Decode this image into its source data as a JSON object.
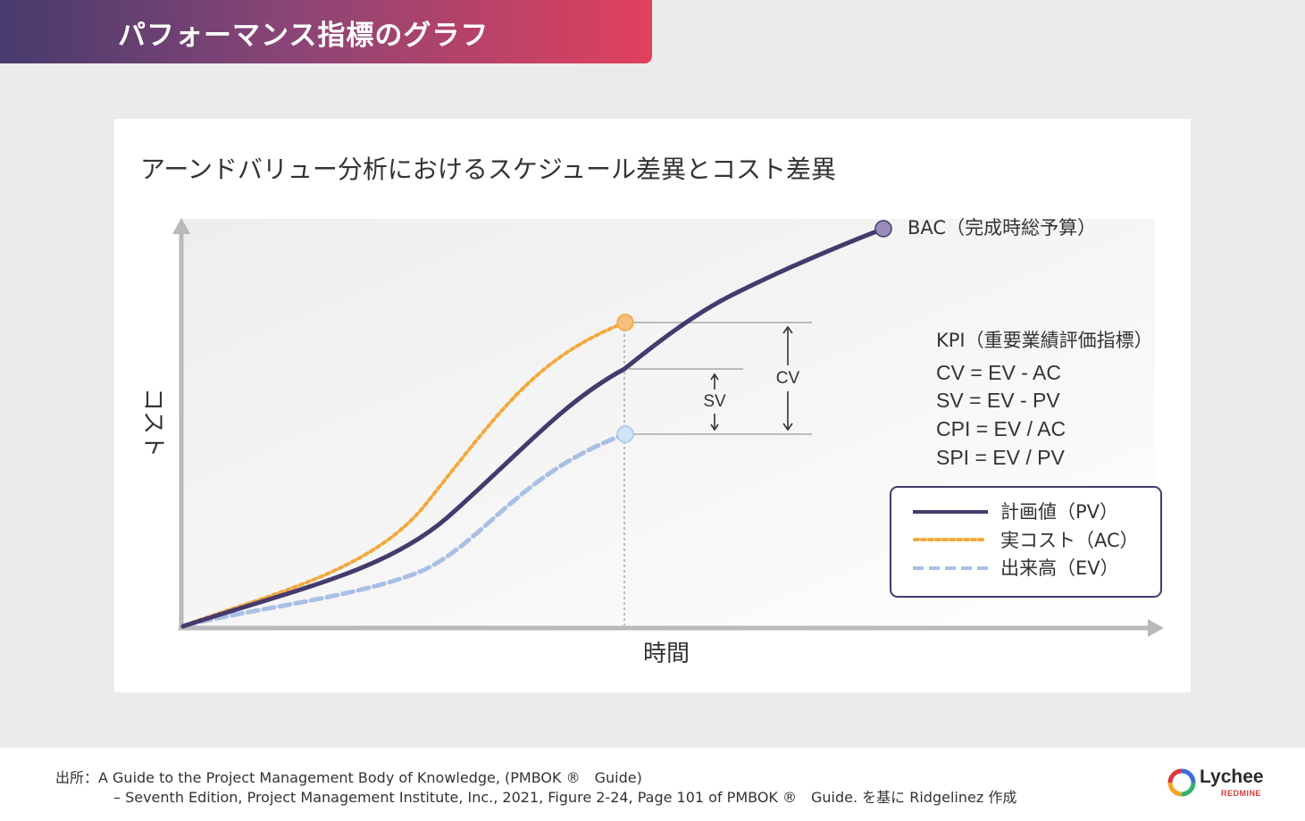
{
  "header": {
    "title": "パフォーマンス指標のグラフ"
  },
  "card": {
    "subtitle": "アーンドバリュー分析におけるスケジュール差異とコスト差異"
  },
  "chart_data": {
    "type": "line",
    "xlabel": "時間",
    "ylabel": "コスト",
    "bac_label": "BAC（完成時総予算）",
    "cv_label": "CV",
    "sv_label": "SV",
    "kpi": {
      "title": "KPI（重要業績評価指標）",
      "formulas": [
        "CV = EV - AC",
        "SV = EV - PV",
        "CPI = EV / AC",
        "SPI = EV / PV"
      ]
    },
    "series": [
      {
        "name": "計画値（PV）",
        "color": "#453a6e",
        "style": "solid"
      },
      {
        "name": "実コスト（AC）",
        "color": "#f2a93b",
        "style": "dotted"
      },
      {
        "name": "出来高（EV）",
        "color": "#a9bfe6",
        "style": "dashed"
      }
    ]
  },
  "footer": {
    "source_line1": "出所：A Guide to the Project Management Body of Knowledge, (PMBOK ®　Guide)",
    "source_line2": "– Seventh Edition, Project Management Institute, Inc., 2021, Figure 2-24, Page 101 of PMBOK ®　Guide. を基に Ridgelinez 作成",
    "logo_name": "Lychee",
    "logo_sub": "REDMINE"
  }
}
